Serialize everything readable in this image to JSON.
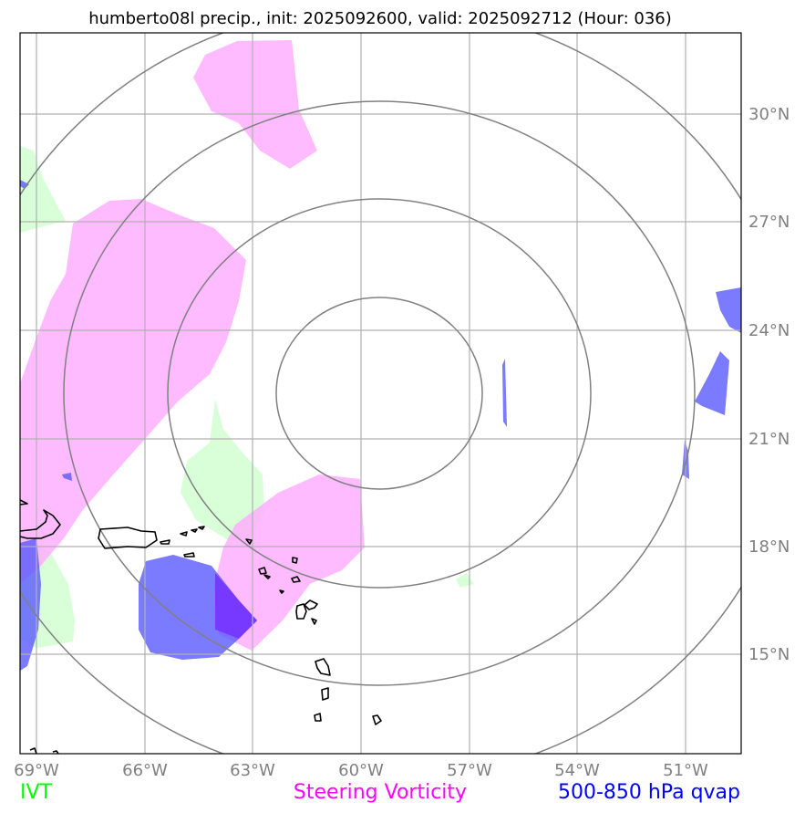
{
  "map": {
    "title": "humberto08l precip., init: 2025092600, valid: 2025092712 (Hour: 036)",
    "lon_labels": [
      "69°W",
      "66°W",
      "63°W",
      "60°W",
      "57°W",
      "54°W",
      "51°W"
    ],
    "lat_labels": [
      "30°N",
      "27°N",
      "24°N",
      "21°N",
      "18°N",
      "15°N"
    ],
    "extent": {
      "lon_min": -69.0,
      "lon_max": -49.0,
      "lat_min": 12.5,
      "lat_max": 32.5
    }
  },
  "legend": {
    "ivt": {
      "label": "IVT",
      "color": "#00ff00"
    },
    "steering_vorticity": {
      "label": "Steering Vorticity",
      "color": "#ff00ff"
    },
    "qvap": {
      "label": "500-850 hPa qvap",
      "color": "#0000ff"
    }
  },
  "colors": {
    "ivt_fill": "#ccffcc",
    "vorticity_fill": "#ffaaff",
    "qvap_fill": "#5a5aff",
    "overlap_fill": "#7733ff",
    "range_rings": "#808080",
    "gridlines": "#b0b0b0",
    "coastline": "#000000"
  }
}
